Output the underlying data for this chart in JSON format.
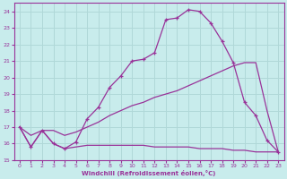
{
  "xlabel": "Windchill (Refroidissement éolien,°C)",
  "background_color": "#c8ecec",
  "grid_color": "#b0d8d8",
  "line_color": "#993399",
  "xlim": [
    -0.5,
    23.5
  ],
  "ylim": [
    15,
    24.5
  ],
  "xticks": [
    0,
    1,
    2,
    3,
    4,
    5,
    6,
    7,
    8,
    9,
    10,
    11,
    12,
    13,
    14,
    15,
    16,
    17,
    18,
    19,
    20,
    21,
    22,
    23
  ],
  "yticks": [
    15,
    16,
    17,
    18,
    19,
    20,
    21,
    22,
    23,
    24
  ],
  "series1_x": [
    0,
    1,
    2,
    3,
    4,
    5,
    6,
    7,
    8,
    9,
    10,
    11,
    12,
    13,
    14,
    15,
    16,
    17,
    18,
    19,
    20,
    21,
    22,
    23
  ],
  "series1_y": [
    17.0,
    15.8,
    16.8,
    16.0,
    15.7,
    16.1,
    17.5,
    18.2,
    19.4,
    20.1,
    21.0,
    21.1,
    21.5,
    23.5,
    23.6,
    24.1,
    24.0,
    23.3,
    22.2,
    20.9,
    18.5,
    17.7,
    16.2,
    15.5
  ],
  "series2_x": [
    0,
    1,
    2,
    3,
    4,
    5,
    6,
    7,
    8,
    9,
    10,
    11,
    12,
    13,
    14,
    15,
    16,
    17,
    18,
    19,
    20,
    21,
    22,
    23
  ],
  "series2_y": [
    17.0,
    16.5,
    16.8,
    16.8,
    16.5,
    16.7,
    17.0,
    17.3,
    17.7,
    18.0,
    18.3,
    18.5,
    18.8,
    19.0,
    19.2,
    19.5,
    19.8,
    20.1,
    20.4,
    20.7,
    20.9,
    20.9,
    18.0,
    15.5
  ],
  "series3_x": [
    0,
    1,
    2,
    3,
    4,
    5,
    6,
    7,
    8,
    9,
    10,
    11,
    12,
    13,
    14,
    15,
    16,
    17,
    18,
    19,
    20,
    21,
    22,
    23
  ],
  "series3_y": [
    17.0,
    15.8,
    16.8,
    16.0,
    15.7,
    15.8,
    15.9,
    15.9,
    15.9,
    15.9,
    15.9,
    15.9,
    15.8,
    15.8,
    15.8,
    15.8,
    15.7,
    15.7,
    15.7,
    15.6,
    15.6,
    15.5,
    15.5,
    15.5
  ]
}
